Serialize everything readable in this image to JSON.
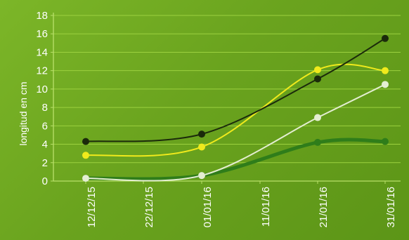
{
  "chart_data": {
    "type": "line",
    "title": "",
    "xlabel": "",
    "ylabel": "longitud en cm",
    "x": [
      "12/12/15",
      "22/12/15",
      "01/01/16",
      "11/01/16",
      "21/01/16",
      "31/01/16"
    ],
    "ylim": [
      0,
      18
    ],
    "yticks": [
      "0",
      "2",
      "4",
      "6",
      "8",
      "10",
      "12",
      "14",
      "16",
      "18"
    ],
    "grid": true,
    "legend": "none",
    "series": [
      {
        "color": "#1b2a0b",
        "values": [
          4.3,
          null,
          5.1,
          null,
          11.1,
          15.5
        ]
      },
      {
        "color": "#f0ea1c",
        "values": [
          2.8,
          null,
          3.7,
          null,
          12.1,
          12.0
        ]
      },
      {
        "color": "#e4eed2",
        "values": [
          0.3,
          null,
          0.6,
          null,
          6.9,
          10.5
        ]
      },
      {
        "color": "#2f7d1a",
        "values": [
          0.3,
          null,
          0.6,
          null,
          4.2,
          4.3
        ]
      }
    ]
  }
}
